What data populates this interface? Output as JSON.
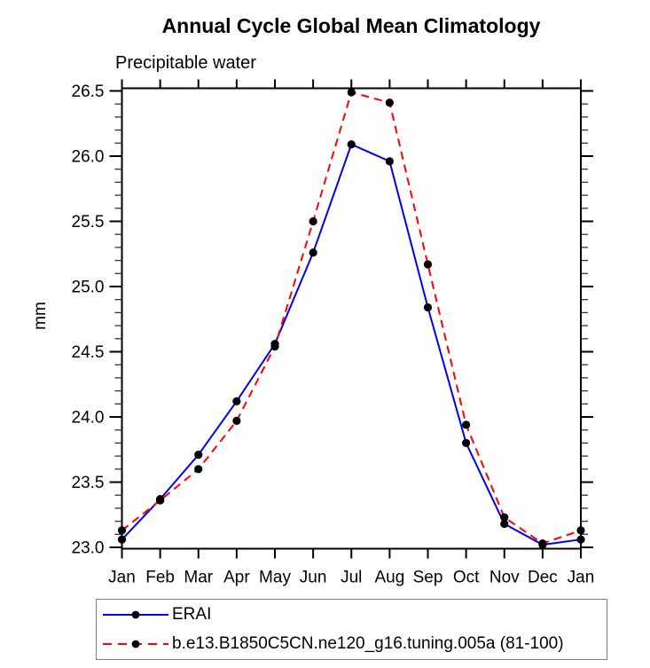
{
  "chart_data": {
    "type": "line",
    "title": "Annual Cycle Global Mean Climatology",
    "subtitle": "Precipitable water",
    "ylabel": "mm",
    "xlabel": "",
    "categories": [
      "Jan",
      "Feb",
      "Mar",
      "Apr",
      "May",
      "Jun",
      "Jul",
      "Aug",
      "Sep",
      "Oct",
      "Nov",
      "Dec",
      "Jan"
    ],
    "series": [
      {
        "name": "ERAI",
        "color": "#0000ee",
        "line_style": "solid",
        "marker": "filled-black-circle",
        "values": [
          23.06,
          23.37,
          23.71,
          24.12,
          24.56,
          25.26,
          26.09,
          25.96,
          24.84,
          23.8,
          23.18,
          23.02,
          23.06
        ]
      },
      {
        "name": "b.e13.B1850C5CN.ne120_g16.tuning.005a (81-100)",
        "color": "#ff0000",
        "line_style": "dashed",
        "marker": "filled-black-circle",
        "values": [
          23.13,
          23.36,
          23.6,
          23.97,
          24.54,
          25.5,
          26.49,
          26.41,
          25.17,
          23.94,
          23.23,
          23.03,
          23.13
        ]
      }
    ],
    "ylim": [
      23.0,
      26.5
    ],
    "ytick_major_step": 0.5,
    "ytick_minor_step": 0.1,
    "ytick_labels": [
      "23.0",
      "23.5",
      "24.0",
      "24.5",
      "25.0",
      "25.5",
      "26.0",
      "26.5"
    ],
    "grid": false,
    "axis_color": "#000000",
    "marker_color": "#000000",
    "legend_position": "bottom"
  }
}
